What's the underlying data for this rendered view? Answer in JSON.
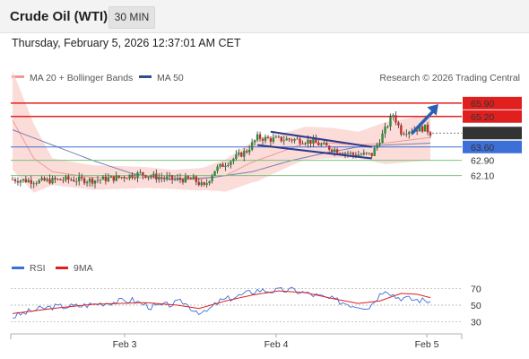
{
  "header": {
    "title": "Crude Oil (WTI)",
    "timeframe": "30 MIN",
    "datetime": "Thursday, February 5, 2026 12:37:01 AM CET"
  },
  "legend": {
    "ma20_label": "MA 20 + Bollinger Bands",
    "ma50_label": "MA 50",
    "copyright": "Research © 2026 Trading Central",
    "rsi_label": "RSI",
    "rsi_ma_label": "9MA"
  },
  "colors": {
    "resistance": "#e0201f",
    "support": "#3d6fd8",
    "target": "#7dc27d",
    "current": "#333333",
    "bollinger": "#f9d0cc",
    "ma20": "#f19a93",
    "ma50": "#7a7fb0",
    "arrow": "#2a62b3",
    "channel": "#2b3a8c"
  },
  "chart_data": [
    {
      "type": "candlestick",
      "x_labels": [
        "Feb 3",
        "Feb 4",
        "Feb 5"
      ],
      "ylim": [
        58.6,
        66.6
      ],
      "levels": [
        {
          "value": 65.9,
          "label": "65.90",
          "kind": "resistance"
        },
        {
          "value": 65.2,
          "label": "65.20",
          "kind": "resistance"
        },
        {
          "value": 64.33,
          "label": "64.33",
          "kind": "current"
        },
        {
          "value": 63.6,
          "label": "63.60",
          "kind": "pivot"
        },
        {
          "value": 62.9,
          "label": "62.90",
          "kind": "support"
        },
        {
          "value": 62.1,
          "label": "62.10",
          "kind": "support"
        }
      ],
      "close_anchors": [
        [
          0,
          61.9
        ],
        [
          10,
          61.8
        ],
        [
          20,
          61.9
        ],
        [
          30,
          61.85
        ],
        [
          40,
          62.0
        ],
        [
          48,
          62.2
        ],
        [
          55,
          62.0
        ],
        [
          62,
          61.9
        ],
        [
          68,
          61.9
        ],
        [
          72,
          61.5
        ],
        [
          76,
          62.4
        ],
        [
          82,
          62.9
        ],
        [
          88,
          63.4
        ],
        [
          92,
          64.1
        ],
        [
          97,
          64.0
        ],
        [
          105,
          64.0
        ],
        [
          112,
          63.9
        ],
        [
          120,
          63.5
        ],
        [
          128,
          63.2
        ],
        [
          135,
          63.2
        ],
        [
          140,
          64.5
        ],
        [
          143,
          65.3
        ],
        [
          146,
          64.4
        ],
        [
          150,
          64.5
        ],
        [
          155,
          64.6
        ],
        [
          157,
          64.33
        ]
      ],
      "ma20_anchors": [
        [
          0,
          65.0
        ],
        [
          8,
          63.0
        ],
        [
          15,
          62.3
        ],
        [
          30,
          62.0
        ],
        [
          50,
          62.0
        ],
        [
          60,
          61.9
        ],
        [
          70,
          61.9
        ],
        [
          80,
          62.1
        ],
        [
          90,
          62.8
        ],
        [
          100,
          63.3
        ],
        [
          110,
          63.8
        ],
        [
          120,
          63.8
        ],
        [
          130,
          63.7
        ],
        [
          140,
          63.8
        ],
        [
          157,
          64.1
        ]
      ],
      "ma50_anchors": [
        [
          0,
          64.5
        ],
        [
          15,
          63.7
        ],
        [
          30,
          62.9
        ],
        [
          45,
          62.2
        ],
        [
          60,
          61.9
        ],
        [
          75,
          62.0
        ],
        [
          90,
          62.3
        ],
        [
          105,
          62.9
        ],
        [
          118,
          63.3
        ],
        [
          130,
          63.6
        ],
        [
          140,
          63.7
        ],
        [
          157,
          63.8
        ]
      ],
      "bb_width_anchors": [
        [
          0,
          2.6
        ],
        [
          8,
          1.8
        ],
        [
          15,
          0.7
        ],
        [
          40,
          0.6
        ],
        [
          60,
          0.5
        ],
        [
          72,
          0.6
        ],
        [
          82,
          0.9
        ],
        [
          92,
          1.1
        ],
        [
          105,
          0.9
        ],
        [
          120,
          0.8
        ],
        [
          130,
          0.7
        ],
        [
          140,
          1.1
        ],
        [
          157,
          1.2
        ]
      ],
      "channel_upper": [
        [
          97,
          64.4
        ],
        [
          135,
          63.6
        ]
      ],
      "channel_lower": [
        [
          92,
          63.7
        ],
        [
          135,
          63.0
        ]
      ],
      "target_arrow": [
        [
          150,
          64.3
        ],
        [
          160,
          65.85
        ]
      ]
    },
    {
      "type": "line",
      "name": "RSI",
      "x_labels": [
        "Feb 3",
        "Feb 4",
        "Feb 5"
      ],
      "ylim": [
        20,
        80
      ],
      "y_ticks": [
        "70",
        "50",
        "30"
      ],
      "rsi_anchors": [
        [
          0,
          36
        ],
        [
          8,
          44
        ],
        [
          15,
          48
        ],
        [
          25,
          49
        ],
        [
          35,
          53
        ],
        [
          45,
          56
        ],
        [
          52,
          48
        ],
        [
          58,
          50
        ],
        [
          64,
          54
        ],
        [
          68,
          45
        ],
        [
          72,
          40
        ],
        [
          78,
          55
        ],
        [
          85,
          61
        ],
        [
          92,
          68
        ],
        [
          98,
          67
        ],
        [
          105,
          68
        ],
        [
          112,
          63
        ],
        [
          120,
          57
        ],
        [
          128,
          50
        ],
        [
          134,
          48
        ],
        [
          140,
          70
        ],
        [
          144,
          60
        ],
        [
          150,
          57
        ],
        [
          157,
          55
        ]
      ],
      "ma9_anchors": [
        [
          0,
          40
        ],
        [
          15,
          46
        ],
        [
          30,
          51
        ],
        [
          50,
          53
        ],
        [
          62,
          50
        ],
        [
          70,
          46
        ],
        [
          80,
          55
        ],
        [
          90,
          62
        ],
        [
          100,
          67
        ],
        [
          110,
          65
        ],
        [
          120,
          58
        ],
        [
          130,
          52
        ],
        [
          138,
          55
        ],
        [
          146,
          64
        ],
        [
          152,
          63
        ],
        [
          157,
          59
        ]
      ]
    }
  ]
}
